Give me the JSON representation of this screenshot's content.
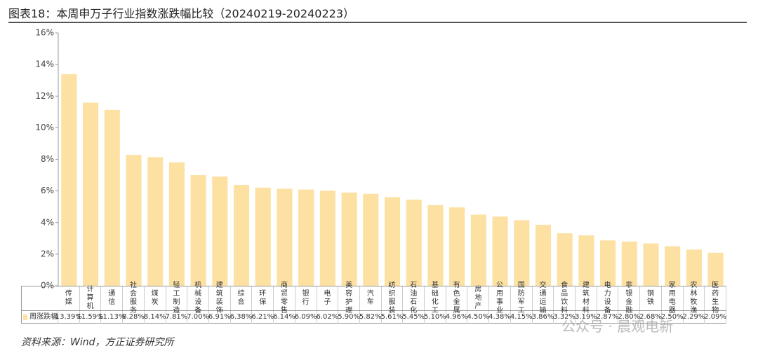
{
  "chart_data": {
    "type": "bar",
    "title": "图表18：本周申万子行业指数涨跌幅比较（20240219-20240223）",
    "categories": [
      "传媒",
      "计算机",
      "通信",
      "社会服务",
      "煤炭",
      "轻工制造",
      "机械设备",
      "建筑装饰",
      "综合",
      "环保",
      "商贸零售",
      "银行",
      "电子",
      "美容护理",
      "汽车",
      "纺织服装",
      "石油石化",
      "基础化工",
      "有色金属",
      "房地产",
      "公用事业",
      "国防军工",
      "交通运输",
      "食品饮料",
      "建筑材料",
      "电力设备",
      "非银金融",
      "钢铁",
      "家用电器",
      "农林牧渔",
      "医药生物"
    ],
    "series": [
      {
        "name": "周涨跌幅",
        "color": "#fde1a3",
        "values": [
          13.39,
          11.59,
          11.13,
          8.28,
          8.14,
          7.81,
          7.0,
          6.91,
          6.38,
          6.21,
          6.14,
          6.09,
          6.02,
          5.9,
          5.82,
          5.61,
          5.45,
          5.1,
          4.96,
          4.5,
          4.38,
          4.15,
          3.86,
          3.32,
          3.19,
          2.87,
          2.8,
          2.68,
          2.5,
          2.29,
          2.09
        ],
        "value_labels": [
          "13.39%",
          "11.59%",
          "11.13%",
          "8.28%",
          "8.14%",
          "7.81%",
          "7.00%",
          "6.91%",
          "6.38%",
          "6.21%",
          "6.14%",
          "6.09%",
          "6.02%",
          "5.90%",
          "5.82%",
          "5.61%",
          "5.45%",
          "5.10%",
          "4.96%",
          "4.50%",
          "4.38%",
          "4.15%",
          "3.86%",
          "3.32%",
          "3.19%",
          "2.87%",
          "2.80%",
          "2.68%",
          "2.50%",
          "2.29%",
          "2.09%"
        ]
      }
    ],
    "ylim": [
      0,
      16
    ],
    "yticks": [
      {
        "value": 0,
        "label": "0%"
      },
      {
        "value": 2,
        "label": "2%"
      },
      {
        "value": 4,
        "label": "4%"
      },
      {
        "value": 6,
        "label": "6%"
      },
      {
        "value": 8,
        "label": "8%"
      },
      {
        "value": 10,
        "label": "10%"
      },
      {
        "value": 12,
        "label": "12%"
      },
      {
        "value": 14,
        "label": "14%"
      },
      {
        "value": 16,
        "label": "16%"
      }
    ],
    "source": "资料来源：Wind，方正证券研究所",
    "watermark": "公众号 · 晨观电新"
  }
}
